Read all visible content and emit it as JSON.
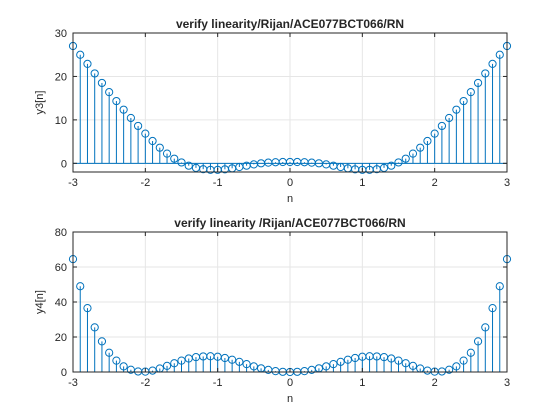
{
  "chart_data": [
    {
      "type": "stem",
      "title": "verify linearity/Rijan/ACE077BCT066/RN",
      "xlabel": "n",
      "ylabel": "y3[n]",
      "xlim": [
        -3,
        3
      ],
      "ylim": [
        -2,
        30
      ],
      "xticks": [
        -3,
        -2,
        -1,
        0,
        1,
        2,
        3
      ],
      "yticks": [
        0,
        10,
        20,
        30
      ],
      "grid": true,
      "color": "#0072bd",
      "x": [
        -3.0,
        -2.9,
        -2.8,
        -2.7,
        -2.6,
        -2.5,
        -2.4,
        -2.3,
        -2.2,
        -2.1,
        -2.0,
        -1.9,
        -1.8,
        -1.7,
        -1.6,
        -1.5,
        -1.4,
        -1.3,
        -1.2,
        -1.1,
        -1.0,
        -0.9,
        -0.8,
        -0.7,
        -0.6,
        -0.5,
        -0.4,
        -0.3,
        -0.2,
        -0.1,
        0.0,
        0.1,
        0.2,
        0.3,
        0.4,
        0.5,
        0.6,
        0.7,
        0.8,
        0.9,
        1.0,
        1.1,
        1.2,
        1.3,
        1.4,
        1.5,
        1.6,
        1.7,
        1.8,
        1.9,
        2.0,
        2.1,
        2.2,
        2.3,
        2.4,
        2.5,
        2.6,
        2.7,
        2.8,
        2.9,
        3.0
      ],
      "values": [
        27.0,
        24.99,
        22.89,
        20.69,
        18.5,
        16.38,
        14.33,
        12.35,
        10.44,
        8.6,
        6.83,
        5.13,
        3.6,
        2.23,
        1.07,
        0.2,
        -0.55,
        -1.05,
        -1.35,
        -1.5,
        -1.5,
        -1.38,
        -1.15,
        -0.85,
        -0.55,
        -0.25,
        0.0,
        0.15,
        0.25,
        0.3,
        0.3,
        0.3,
        0.25,
        0.15,
        0.0,
        -0.25,
        -0.55,
        -0.85,
        -1.15,
        -1.38,
        -1.5,
        -1.5,
        -1.35,
        -1.05,
        -0.55,
        0.2,
        1.07,
        2.23,
        3.6,
        5.13,
        6.83,
        8.6,
        10.44,
        12.35,
        14.33,
        16.38,
        18.5,
        20.69,
        22.89,
        24.99,
        27.0
      ]
    },
    {
      "type": "stem",
      "title": "verify linearity /Rijan/ACE077BCT066/RN",
      "xlabel": "n",
      "ylabel": "y4[n]",
      "xlim": [
        -3,
        3
      ],
      "ylim": [
        0,
        80
      ],
      "xticks": [
        -3,
        -2,
        -1,
        0,
        1,
        2,
        3
      ],
      "yticks": [
        0,
        20,
        40,
        60,
        80
      ],
      "grid": true,
      "color": "#0072bd",
      "x": [
        -3.0,
        -2.9,
        -2.8,
        -2.7,
        -2.6,
        -2.5,
        -2.4,
        -2.3,
        -2.2,
        -2.1,
        -2.0,
        -1.9,
        -1.8,
        -1.7,
        -1.6,
        -1.5,
        -1.4,
        -1.3,
        -1.2,
        -1.1,
        -1.0,
        -0.9,
        -0.8,
        -0.7,
        -0.6,
        -0.5,
        -0.4,
        -0.3,
        -0.2,
        -0.1,
        0.0,
        0.1,
        0.2,
        0.3,
        0.4,
        0.5,
        0.6,
        0.7,
        0.8,
        0.9,
        1.0,
        1.1,
        1.2,
        1.3,
        1.4,
        1.5,
        1.6,
        1.7,
        1.8,
        1.9,
        2.0,
        2.1,
        2.2,
        2.3,
        2.4,
        2.5,
        2.6,
        2.7,
        2.8,
        2.9,
        3.0
      ],
      "values": [
        64.5,
        49.0,
        36.5,
        25.5,
        17.5,
        11.0,
        6.5,
        3.2,
        1.3,
        0.3,
        0.2,
        0.8,
        2.0,
        3.5,
        5.0,
        6.5,
        7.7,
        8.5,
        8.9,
        9.0,
        8.7,
        8.0,
        7.0,
        5.8,
        4.5,
        3.2,
        2.1,
        1.2,
        0.5,
        0.1,
        0.0,
        0.1,
        0.5,
        1.2,
        2.1,
        3.2,
        4.5,
        5.8,
        7.0,
        8.0,
        8.7,
        9.0,
        8.9,
        8.5,
        7.7,
        6.5,
        5.0,
        3.5,
        2.0,
        0.8,
        0.2,
        0.3,
        1.3,
        3.2,
        6.5,
        11.0,
        17.5,
        25.5,
        36.5,
        49.0,
        64.5
      ]
    }
  ]
}
